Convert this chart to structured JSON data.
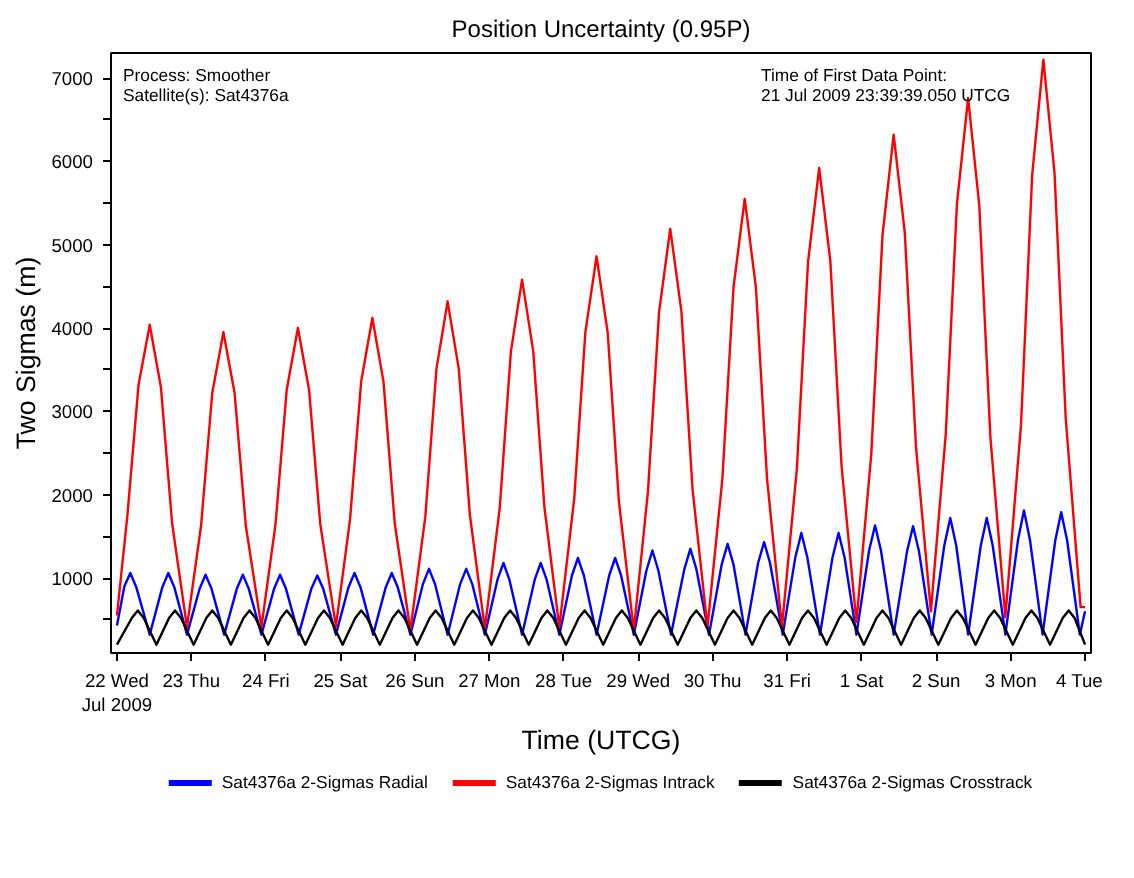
{
  "chart_data": {
    "type": "line",
    "title": "Position Uncertainty (0.95P)",
    "xlabel": "Time (UTCG)",
    "ylabel": "Two Sigmas (m)",
    "annotations": [
      "Process: Smoother",
      "Satellite(s): Sat4376a",
      "Time of First Data Point:",
      "21 Jul 2009 23:39:39.050 UTCG"
    ],
    "xlim": [
      "2009-07-21T22:05",
      "2009-08-04T01:55"
    ],
    "xticks": [
      {
        "value": "2009-07-22",
        "label": "22 Wed\nJul 2009"
      },
      {
        "value": "2009-07-23",
        "label": "23 Thu"
      },
      {
        "value": "2009-07-24",
        "label": "24 Fri"
      },
      {
        "value": "2009-07-25",
        "label": "25 Sat"
      },
      {
        "value": "2009-07-26",
        "label": "26 Sun"
      },
      {
        "value": "2009-07-27",
        "label": "27 Mon"
      },
      {
        "value": "2009-07-28",
        "label": "28 Tue"
      },
      {
        "value": "2009-07-29",
        "label": "29 Wed"
      },
      {
        "value": "2009-07-30",
        "label": "30 Thu"
      },
      {
        "value": "2009-07-31",
        "label": "31 Fri"
      },
      {
        "value": "2009-08-01",
        "label": "1 Sat"
      },
      {
        "value": "2009-08-02",
        "label": "2 Sun"
      },
      {
        "value": "2009-08-03",
        "label": "3 Mon"
      },
      {
        "value": "2009-08-04",
        "label": "4 Tue"
      }
    ],
    "ylim": [
      100,
      7300
    ],
    "yticks": [
      {
        "value": 500,
        "label": null
      },
      1000,
      {
        "value": 1500,
        "label": null
      },
      2000,
      {
        "value": 2500,
        "label": null
      },
      3000,
      {
        "value": 3500,
        "label": null
      },
      4000,
      {
        "value": 4500,
        "label": null
      },
      5000,
      {
        "value": 5500,
        "label": null
      },
      6000,
      {
        "value": 6500,
        "label": null
      },
      7000
    ],
    "legend": "bottom",
    "line_style": "solid",
    "series": [
      {
        "name": "Sat4376a 2-Sigmas Radial",
        "color": "#0000ff",
        "x": [
          "2009-07-22T00:00",
          "2009-07-22T02:24",
          "2009-07-22T04:19",
          "2009-07-22T06:14",
          "2009-07-22T10:34",
          "2009-07-22T14:38",
          "2009-07-22T16:34",
          "2009-07-22T18:29",
          "2009-07-22T22:34",
          "2009-07-23T02:38",
          "2009-07-23T04:34",
          "2009-07-23T06:29",
          "2009-07-23T10:34",
          "2009-07-23T14:38",
          "2009-07-23T16:34",
          "2009-07-23T18:29",
          "2009-07-23T22:34",
          "2009-07-24T02:38",
          "2009-07-24T04:34",
          "2009-07-24T06:29",
          "2009-07-24T10:34",
          "2009-07-24T14:38",
          "2009-07-24T16:34",
          "2009-07-24T18:29",
          "2009-07-24T22:34",
          "2009-07-25T02:38",
          "2009-07-25T04:34",
          "2009-07-25T06:29",
          "2009-07-25T10:34",
          "2009-07-25T14:38",
          "2009-07-25T16:34",
          "2009-07-25T18:29",
          "2009-07-25T22:34",
          "2009-07-26T02:38",
          "2009-07-26T04:34",
          "2009-07-26T06:29",
          "2009-07-26T10:34",
          "2009-07-26T14:38",
          "2009-07-26T16:34",
          "2009-07-26T18:29",
          "2009-07-26T22:34",
          "2009-07-27T02:38",
          "2009-07-27T04:34",
          "2009-07-27T06:29",
          "2009-07-27T10:34",
          "2009-07-27T14:38",
          "2009-07-27T16:34",
          "2009-07-27T18:29",
          "2009-07-27T22:34",
          "2009-07-28T02:38",
          "2009-07-28T04:34",
          "2009-07-28T06:29",
          "2009-07-28T10:34",
          "2009-07-28T14:38",
          "2009-07-28T16:34",
          "2009-07-28T18:29",
          "2009-07-28T22:34",
          "2009-07-29T02:38",
          "2009-07-29T04:34",
          "2009-07-29T06:29",
          "2009-07-29T10:34",
          "2009-07-29T14:53",
          "2009-07-29T16:48",
          "2009-07-29T18:43",
          "2009-07-29T22:48",
          "2009-07-30T02:53",
          "2009-07-30T04:48",
          "2009-07-30T06:43",
          "2009-07-30T10:34",
          "2009-07-30T14:38",
          "2009-07-30T16:34",
          "2009-07-30T18:29",
          "2009-07-30T22:34",
          "2009-07-31T02:38",
          "2009-07-31T04:34",
          "2009-07-31T06:29",
          "2009-07-31T10:34",
          "2009-07-31T14:38",
          "2009-07-31T16:34",
          "2009-07-31T18:29",
          "2009-07-31T22:19",
          "2009-08-01T02:24",
          "2009-08-01T04:19",
          "2009-08-01T06:14",
          "2009-08-01T10:19",
          "2009-08-01T14:38",
          "2009-08-01T16:34",
          "2009-08-01T18:29",
          "2009-08-01T22:34",
          "2009-08-02T02:38",
          "2009-08-02T04:34",
          "2009-08-02T06:29",
          "2009-08-02T10:19",
          "2009-08-02T14:24",
          "2009-08-02T16:19",
          "2009-08-02T18:14",
          "2009-08-02T22:19",
          "2009-08-03T02:24",
          "2009-08-03T04:19",
          "2009-08-03T06:14",
          "2009-08-03T10:19",
          "2009-08-03T14:24",
          "2009-08-03T16:19",
          "2009-08-03T18:14",
          "2009-08-03T22:19",
          "2009-08-04T00:00"
        ],
        "values": [
          430,
          900,
          1060,
          890,
          320,
          890,
          1060,
          890,
          320,
          870,
          1040,
          870,
          320,
          870,
          1040,
          870,
          320,
          870,
          1040,
          870,
          320,
          870,
          1030,
          870,
          320,
          890,
          1060,
          890,
          320,
          890,
          1060,
          890,
          320,
          930,
          1110,
          930,
          320,
          930,
          1110,
          930,
          320,
          980,
          1180,
          980,
          320,
          980,
          1180,
          980,
          320,
          1030,
          1240,
          1030,
          320,
          1030,
          1240,
          1030,
          320,
          1090,
          1330,
          1090,
          320,
          1110,
          1350,
          1110,
          320,
          1160,
          1410,
          1160,
          320,
          1180,
          1430,
          1180,
          320,
          1250,
          1540,
          1250,
          320,
          1250,
          1540,
          1250,
          320,
          1330,
          1630,
          1330,
          320,
          1320,
          1620,
          1320,
          320,
          1390,
          1720,
          1390,
          320,
          1390,
          1720,
          1390,
          320,
          1460,
          1810,
          1460,
          320,
          1450,
          1790,
          1450,
          320,
          600
        ]
      },
      {
        "name": "Sat4376a 2-Sigmas Intrack",
        "color": "#ff0000",
        "x": [
          "2009-07-22T00:00",
          "2009-07-22T03:22",
          "2009-07-22T06:58",
          "2009-07-22T10:34",
          "2009-07-22T14:10",
          "2009-07-22T17:46",
          "2009-07-22T22:34",
          "2009-07-23T03:07",
          "2009-07-23T06:43",
          "2009-07-23T10:19",
          "2009-07-23T13:55",
          "2009-07-23T17:31",
          "2009-07-23T22:34",
          "2009-07-24T03:07",
          "2009-07-24T06:43",
          "2009-07-24T10:19",
          "2009-07-24T13:55",
          "2009-07-24T17:31",
          "2009-07-24T22:34",
          "2009-07-25T03:07",
          "2009-07-25T06:43",
          "2009-07-25T10:19",
          "2009-07-25T13:55",
          "2009-07-25T17:31",
          "2009-07-25T22:34",
          "2009-07-26T03:22",
          "2009-07-26T06:58",
          "2009-07-26T10:34",
          "2009-07-26T14:10",
          "2009-07-26T17:46",
          "2009-07-26T22:34",
          "2009-07-27T03:22",
          "2009-07-27T06:58",
          "2009-07-27T10:34",
          "2009-07-27T14:10",
          "2009-07-27T17:46",
          "2009-07-27T22:34",
          "2009-07-28T03:22",
          "2009-07-28T06:58",
          "2009-07-28T10:34",
          "2009-07-28T14:10",
          "2009-07-28T17:46",
          "2009-07-28T22:34",
          "2009-07-29T03:07",
          "2009-07-29T06:43",
          "2009-07-29T10:19",
          "2009-07-29T13:55",
          "2009-07-29T17:31",
          "2009-07-29T22:19",
          "2009-07-30T03:07",
          "2009-07-30T06:43",
          "2009-07-30T10:19",
          "2009-07-30T13:55",
          "2009-07-30T17:31",
          "2009-07-30T22:19",
          "2009-07-31T03:07",
          "2009-07-31T06:43",
          "2009-07-31T10:19",
          "2009-07-31T13:55",
          "2009-07-31T17:31",
          "2009-07-31T22:19",
          "2009-08-01T03:07",
          "2009-08-01T06:43",
          "2009-08-01T10:19",
          "2009-08-01T13:55",
          "2009-08-01T17:31",
          "2009-08-01T22:19",
          "2009-08-02T03:07",
          "2009-08-02T06:43",
          "2009-08-02T10:19",
          "2009-08-02T13:55",
          "2009-08-02T17:31",
          "2009-08-02T22:19",
          "2009-08-03T03:22",
          "2009-08-03T06:58",
          "2009-08-03T10:34",
          "2009-08-03T14:10",
          "2009-08-03T17:46",
          "2009-08-03T22:34",
          "2009-08-04T00:00"
        ],
        "values": [
          550,
          1750,
          3320,
          4040,
          3290,
          1660,
          410,
          1630,
          3220,
          3950,
          3220,
          1630,
          410,
          1650,
          3260,
          4000,
          3260,
          1650,
          420,
          1700,
          3360,
          4120,
          3350,
          1660,
          370,
          1730,
          3510,
          4320,
          3510,
          1750,
          390,
          1840,
          3720,
          4580,
          3720,
          1850,
          410,
          1950,
          3950,
          4860,
          3940,
          1920,
          370,
          2030,
          4190,
          5190,
          4200,
          2060,
          410,
          2190,
          4490,
          5550,
          4490,
          2190,
          410,
          2310,
          4790,
          5920,
          4800,
          2350,
          470,
          2490,
          5110,
          6320,
          5140,
          2570,
          600,
          2730,
          5490,
          6760,
          5470,
          2680,
          530,
          2840,
          5840,
          7220,
          5860,
          2920,
          650,
          650
        ]
      },
      {
        "name": "Sat4376a 2-Sigmas Crosstrack",
        "color": "#000000",
        "x": [
          "2009-07-22T00:00",
          "2009-07-22T04:48",
          "2009-07-22T06:43",
          "2009-07-22T08:38",
          "2009-07-22T12:43",
          "2009-07-22T16:48",
          "2009-07-22T18:43",
          "2009-07-22T20:38",
          "2009-07-23T00:43",
          "2009-07-23T04:48",
          "2009-07-23T06:43",
          "2009-07-23T08:38",
          "2009-07-23T12:43",
          "2009-07-23T16:48",
          "2009-07-23T18:43",
          "2009-07-23T20:38",
          "2009-07-24T00:43",
          "2009-07-24T04:48",
          "2009-07-24T06:43",
          "2009-07-24T08:38",
          "2009-07-24T12:43",
          "2009-07-24T16:48",
          "2009-07-24T18:43",
          "2009-07-24T20:38",
          "2009-07-25T00:43",
          "2009-07-25T04:48",
          "2009-07-25T06:43",
          "2009-07-25T08:38",
          "2009-07-25T12:43",
          "2009-07-25T16:48",
          "2009-07-25T18:43",
          "2009-07-25T20:38",
          "2009-07-26T00:43",
          "2009-07-26T04:48",
          "2009-07-26T06:43",
          "2009-07-26T08:38",
          "2009-07-26T12:43",
          "2009-07-26T16:48",
          "2009-07-26T18:43",
          "2009-07-26T20:38",
          "2009-07-27T00:43",
          "2009-07-27T04:48",
          "2009-07-27T06:43",
          "2009-07-27T08:38",
          "2009-07-27T12:43",
          "2009-07-27T16:48",
          "2009-07-27T18:43",
          "2009-07-27T20:38",
          "2009-07-28T00:43",
          "2009-07-28T04:48",
          "2009-07-28T06:43",
          "2009-07-28T08:38",
          "2009-07-28T12:43",
          "2009-07-28T16:48",
          "2009-07-28T18:43",
          "2009-07-28T20:38",
          "2009-07-29T00:43",
          "2009-07-29T04:48",
          "2009-07-29T06:43",
          "2009-07-29T08:38",
          "2009-07-29T12:43",
          "2009-07-29T16:48",
          "2009-07-29T18:43",
          "2009-07-29T20:38",
          "2009-07-30T00:43",
          "2009-07-30T04:48",
          "2009-07-30T06:43",
          "2009-07-30T08:38",
          "2009-07-30T12:43",
          "2009-07-30T16:48",
          "2009-07-30T18:43",
          "2009-07-30T20:38",
          "2009-07-31T00:43",
          "2009-07-31T04:48",
          "2009-07-31T06:43",
          "2009-07-31T08:38",
          "2009-07-31T12:43",
          "2009-07-31T16:48",
          "2009-07-31T18:43",
          "2009-07-31T20:38",
          "2009-08-01T00:43",
          "2009-08-01T04:48",
          "2009-08-01T06:43",
          "2009-08-01T08:38",
          "2009-08-01T12:43",
          "2009-08-01T16:48",
          "2009-08-01T18:43",
          "2009-08-01T20:38",
          "2009-08-02T00:43",
          "2009-08-02T04:48",
          "2009-08-02T06:43",
          "2009-08-02T08:38",
          "2009-08-02T12:43",
          "2009-08-02T16:48",
          "2009-08-02T18:43",
          "2009-08-02T20:38",
          "2009-08-03T00:43",
          "2009-08-03T04:48",
          "2009-08-03T06:43",
          "2009-08-03T08:38",
          "2009-08-03T12:43",
          "2009-08-03T16:48",
          "2009-08-03T18:43",
          "2009-08-03T20:38",
          "2009-08-04T00:00"
        ],
        "values": [
          200,
          520,
          610,
          520,
          200,
          520,
          610,
          520,
          200,
          520,
          610,
          520,
          200,
          520,
          610,
          520,
          200,
          520,
          610,
          520,
          200,
          520,
          610,
          520,
          200,
          520,
          610,
          520,
          200,
          520,
          610,
          520,
          200,
          520,
          610,
          520,
          200,
          520,
          610,
          520,
          200,
          520,
          610,
          520,
          200,
          520,
          610,
          520,
          200,
          520,
          610,
          520,
          200,
          520,
          610,
          520,
          200,
          520,
          610,
          520,
          200,
          520,
          610,
          520,
          200,
          520,
          610,
          520,
          200,
          520,
          610,
          520,
          200,
          520,
          610,
          520,
          200,
          520,
          610,
          520,
          200,
          520,
          610,
          520,
          200,
          520,
          610,
          520,
          200,
          520,
          610,
          520,
          200,
          520,
          610,
          520,
          200,
          520,
          610,
          520,
          200,
          520,
          610,
          520,
          200
        ]
      }
    ]
  }
}
